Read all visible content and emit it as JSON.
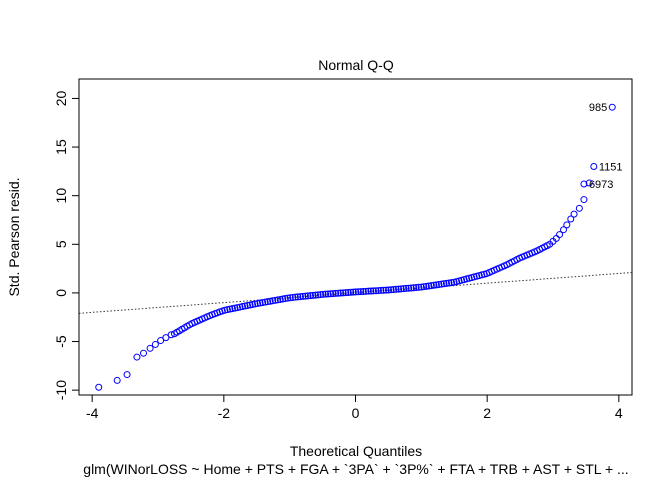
{
  "chart_data": {
    "type": "scatter",
    "title": "Normal Q-Q",
    "xlabel": "Theoretical Quantiles",
    "ylabel": "Std. Pearson resid.",
    "subtitle": "glm(WINorLOSS ~ Home + PTS + FGA + `3PA` + `3P%` + FTA + TRB + AST + STL +  ...",
    "xlim": [
      -4.2,
      4.2
    ],
    "ylim": [
      -10.5,
      22
    ],
    "x_ticks": [
      -4,
      -2,
      0,
      2,
      4
    ],
    "y_ticks": [
      -10,
      -5,
      0,
      5,
      10,
      15,
      20
    ],
    "point_color": "#0000FF",
    "reference_line": {
      "slope": 0.5,
      "intercept": 0.0,
      "style": "dotted"
    },
    "labeled_points": [
      {
        "label": "985",
        "x": 3.9,
        "y": 19.1
      },
      {
        "label": "1151",
        "x": 3.62,
        "y": 13.0
      },
      {
        "label": "6973",
        "x": 3.47,
        "y": 11.2
      }
    ],
    "tail_points": [
      [
        -3.9,
        -9.7
      ],
      [
        -3.62,
        -9.0
      ],
      [
        -3.47,
        -8.4
      ],
      [
        -3.32,
        -6.6
      ],
      [
        -3.22,
        -6.2
      ],
      [
        -3.12,
        -5.7
      ],
      [
        -3.04,
        -5.3
      ],
      [
        -2.96,
        -4.9
      ],
      [
        -2.88,
        -4.6
      ],
      [
        -2.8,
        -4.3
      ],
      [
        3.0,
        5.3
      ],
      [
        3.05,
        5.6
      ],
      [
        3.1,
        6.0
      ],
      [
        3.16,
        6.5
      ],
      [
        3.21,
        7.0
      ],
      [
        3.27,
        7.6
      ],
      [
        3.32,
        8.1
      ],
      [
        3.4,
        8.7
      ],
      [
        3.47,
        9.6
      ],
      [
        3.55,
        11.3
      ]
    ],
    "curve_knots": [
      [
        -2.75,
        -4.2
      ],
      [
        -2.5,
        -3.2
      ],
      [
        -2.2,
        -2.3
      ],
      [
        -2.0,
        -1.8
      ],
      [
        -1.5,
        -1.1
      ],
      [
        -1.0,
        -0.5
      ],
      [
        -0.5,
        -0.15
      ],
      [
        0.0,
        0.1
      ],
      [
        0.5,
        0.3
      ],
      [
        1.0,
        0.6
      ],
      [
        1.5,
        1.1
      ],
      [
        2.0,
        2.0
      ],
      [
        2.3,
        2.9
      ],
      [
        2.5,
        3.6
      ],
      [
        2.75,
        4.3
      ],
      [
        2.95,
        5.0
      ]
    ],
    "curve_point_count": 150
  }
}
